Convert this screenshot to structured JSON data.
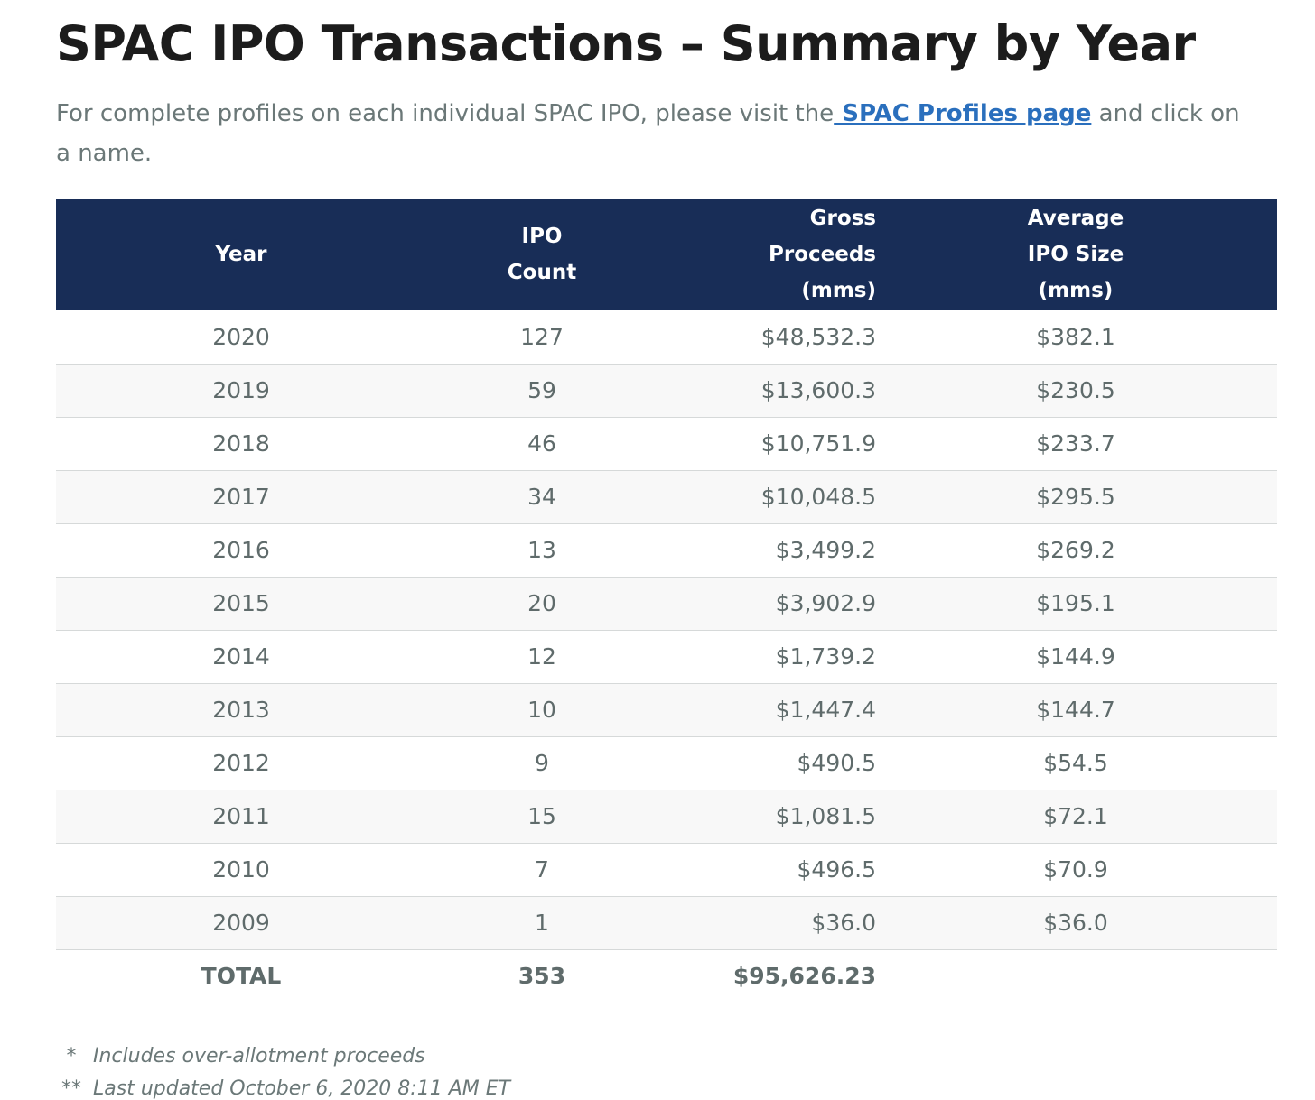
{
  "title": "SPAC IPO Transactions – Summary by Year",
  "intro": {
    "before_link": "For complete profiles on each individual SPAC IPO, please visit the",
    "link_text": " SPAC Profiles page",
    "after_link": " and click on a name."
  },
  "table": {
    "headers": {
      "year": "Year",
      "ipo_count": [
        "IPO",
        "Count"
      ],
      "gross_proceeds": [
        "Gross",
        "Proceeds",
        "(mms)"
      ],
      "average_ipo_size": [
        "Average",
        "IPO Size",
        "(mms)"
      ]
    },
    "rows": [
      {
        "year": "2020",
        "count": "127",
        "gross": "$48,532.3",
        "avg": "$382.1"
      },
      {
        "year": "2019",
        "count": "59",
        "gross": "$13,600.3",
        "avg": "$230.5"
      },
      {
        "year": "2018",
        "count": "46",
        "gross": "$10,751.9",
        "avg": "$233.7"
      },
      {
        "year": "2017",
        "count": "34",
        "gross": "$10,048.5",
        "avg": "$295.5"
      },
      {
        "year": "2016",
        "count": "13",
        "gross": "$3,499.2",
        "avg": "$269.2"
      },
      {
        "year": "2015",
        "count": "20",
        "gross": "$3,902.9",
        "avg": "$195.1"
      },
      {
        "year": "2014",
        "count": "12",
        "gross": "$1,739.2",
        "avg": "$144.9"
      },
      {
        "year": "2013",
        "count": "10",
        "gross": "$1,447.4",
        "avg": "$144.7"
      },
      {
        "year": "2012",
        "count": "9",
        "gross": "$490.5",
        "avg": "$54.5"
      },
      {
        "year": "2011",
        "count": "15",
        "gross": "$1,081.5",
        "avg": "$72.1"
      },
      {
        "year": "2010",
        "count": "7",
        "gross": "$496.5",
        "avg": "$70.9"
      },
      {
        "year": "2009",
        "count": "1",
        "gross": "$36.0",
        "avg": "$36.0"
      }
    ],
    "total": {
      "label": "TOTAL",
      "count": "353",
      "gross": "$95,626.23",
      "avg": ""
    }
  },
  "notes": [
    {
      "mark": "*",
      "text": "Includes over-allotment proceeds"
    },
    {
      "mark": "**",
      "text": "Last updated October 6, 2020 8:11 AM ET"
    }
  ]
}
